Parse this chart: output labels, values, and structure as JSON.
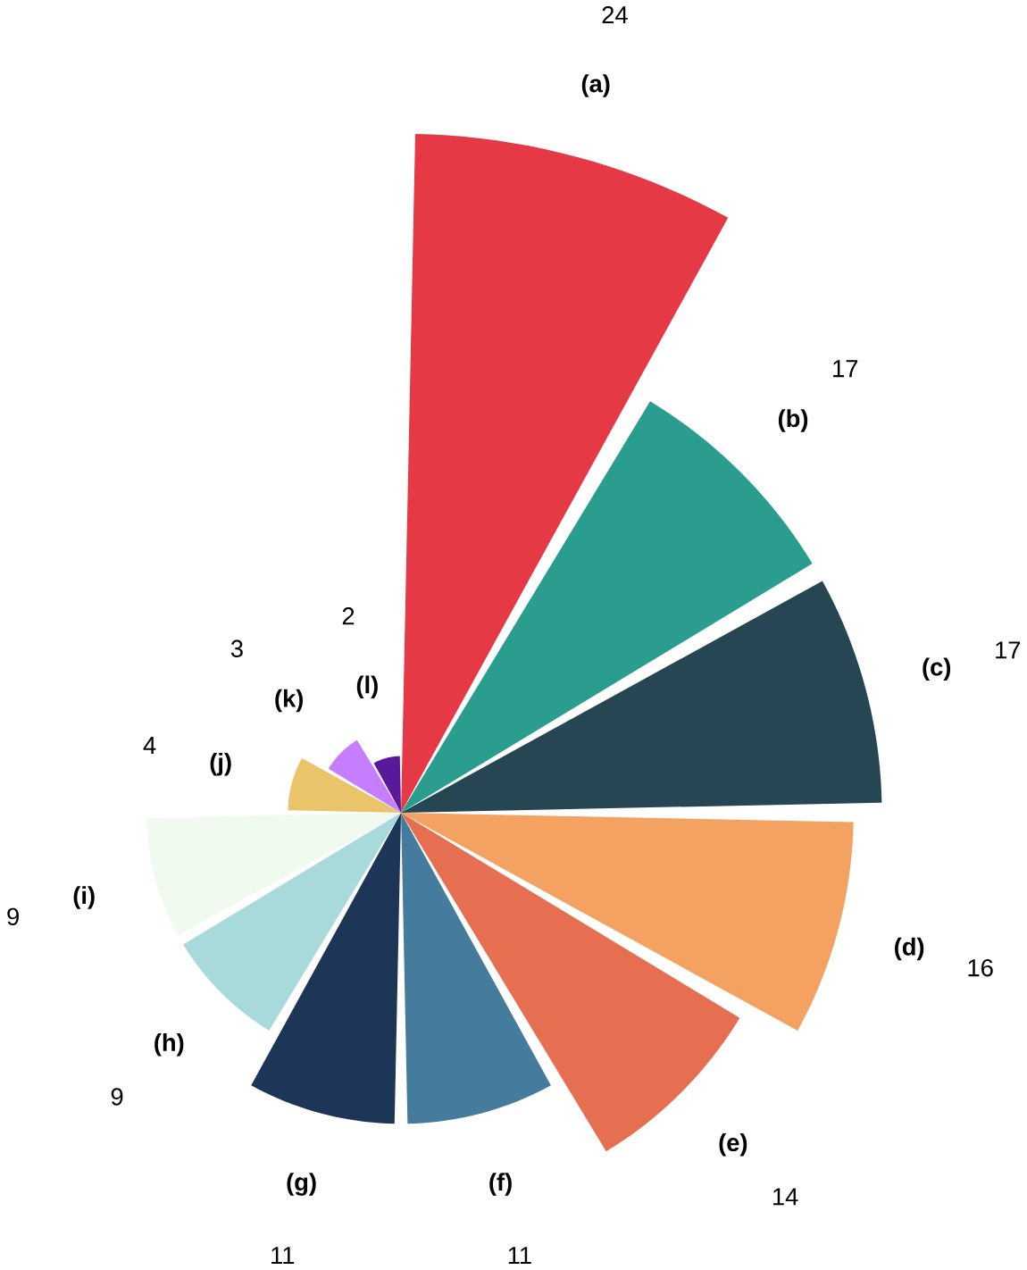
{
  "chart_data": {
    "type": "other",
    "categories": [
      "(a)",
      "(b)",
      "(c)",
      "(d)",
      "(e)",
      "(f)",
      "(g)",
      "(h)",
      "(i)",
      "(j)",
      "(k)",
      "(l)"
    ],
    "values": [
      24,
      17,
      17,
      16,
      14,
      11,
      11,
      9,
      9,
      4,
      3,
      2
    ],
    "colors": [
      "#e63946",
      "#2a9d8f",
      "#264653",
      "#f4a261",
      "#e76f51",
      "#457b9d",
      "#1d3557",
      "#a8dadc",
      "#f1faee",
      "#e9c46a",
      "#c77dff",
      "#5a189a"
    ],
    "data_labels": true
  }
}
